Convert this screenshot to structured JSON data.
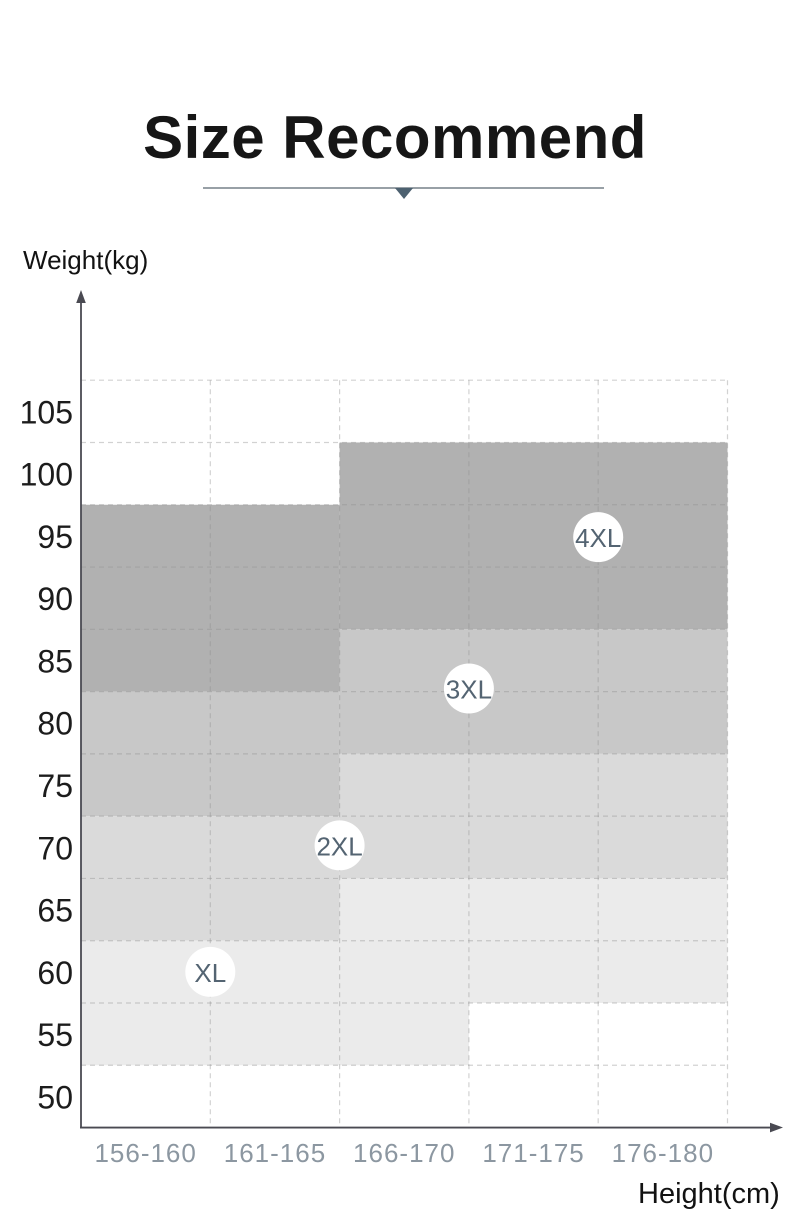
{
  "header": {
    "title": "Size Recommend",
    "underline_color": "#98a0a6",
    "arrow_color": "#4d6170"
  },
  "chart_data": {
    "type": "heatmap",
    "title": "Size Recommend",
    "xlabel": "Height(cm)",
    "ylabel": "Weight(kg)",
    "x_categories": [
      "156-160",
      "161-165",
      "166-170",
      "171-175",
      "176-180"
    ],
    "y_tick_labels": [
      "105",
      "100",
      "95",
      "90",
      "85",
      "80",
      "75",
      "70",
      "65",
      "60",
      "55",
      "50"
    ],
    "grid": true,
    "legend_position": "none",
    "axis_color": "#4a4a52",
    "grid_color": "#8f8f8f",
    "y_tick_color": "#1c1c1c",
    "x_tick_color": "#8c97a1",
    "badge_fill": "#ffffff",
    "badge_text_color": "#546472",
    "zones": [
      {
        "label": "4XL",
        "color": "#b1b1b1",
        "rects": [
          {
            "col_start": 0,
            "col_end": 2,
            "row_start": 2,
            "row_end": 5
          },
          {
            "col_start": 2,
            "col_end": 5,
            "row_start": 1,
            "row_end": 4
          }
        ],
        "badge": {
          "col": 4.0,
          "row": 2.52
        }
      },
      {
        "label": "3XL",
        "color": "#c8c8c8",
        "rects": [
          {
            "col_start": 0,
            "col_end": 2,
            "row_start": 5,
            "row_end": 7
          },
          {
            "col_start": 2,
            "col_end": 5,
            "row_start": 4,
            "row_end": 6
          }
        ],
        "badge": {
          "col": 3.0,
          "row": 4.95
        }
      },
      {
        "label": "2XL",
        "color": "#dadada",
        "rects": [
          {
            "col_start": 0,
            "col_end": 2,
            "row_start": 7,
            "row_end": 9
          },
          {
            "col_start": 2,
            "col_end": 5,
            "row_start": 6,
            "row_end": 8
          }
        ],
        "badge": {
          "col": 2.0,
          "row": 7.47
        }
      },
      {
        "label": "XL",
        "color": "#ebebeb",
        "rects": [
          {
            "col_start": 0,
            "col_end": 2,
            "row_start": 9,
            "row_end": 11
          },
          {
            "col_start": 2,
            "col_end": 3,
            "row_start": 8,
            "row_end": 11
          },
          {
            "col_start": 3,
            "col_end": 5,
            "row_start": 8,
            "row_end": 10
          }
        ],
        "badge": {
          "col": 1.0,
          "row": 9.5
        }
      }
    ]
  }
}
